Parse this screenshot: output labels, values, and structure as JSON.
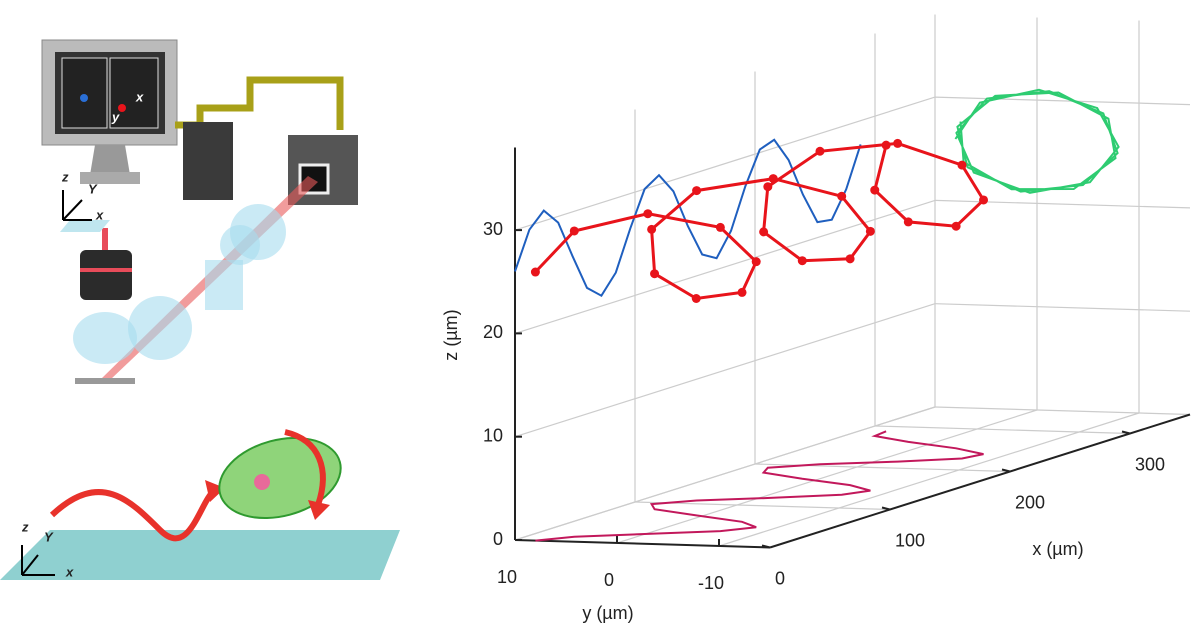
{
  "chart_data": {
    "type": "line3d",
    "xlabel": "x (µm)",
    "ylabel": "y (µm)",
    "zlabel": "z (µm)",
    "xlim": [
      0,
      350
    ],
    "ylim": [
      -15,
      10
    ],
    "zlim": [
      0,
      38
    ],
    "xticks": [
      0,
      100,
      200,
      300
    ],
    "yticks": [
      10,
      0,
      -10
    ],
    "zticks": [
      0,
      10,
      20,
      30
    ],
    "grid": true,
    "projection_colors": {
      "xz": "#1f5fbf",
      "yz": "#2ecc71",
      "xy": "#c2185b"
    },
    "series": [
      {
        "color": "#e8141b",
        "x": [
          0,
          12,
          24,
          36,
          48,
          60,
          72,
          84,
          96,
          108,
          120,
          132,
          144,
          156,
          168,
          180,
          192,
          204,
          216,
          228,
          240,
          252,
          264,
          276,
          288
        ],
        "y": [
          8.0,
          5.6,
          -0.2,
          -5.9,
          -8.0,
          -5.2,
          0.7,
          6.2,
          7.9,
          4.9,
          -1.2,
          -6.5,
          -7.9,
          -4.5,
          1.6,
          6.8,
          7.8,
          4.1,
          -2.1,
          -7.0,
          -7.7,
          -3.6,
          2.5,
          7.2,
          7.5
        ],
        "z": [
          26.0,
          29.6,
          31.0,
          29.4,
          25.7,
          22.2,
          21.0,
          22.8,
          26.6,
          30.0,
          30.9,
          28.9,
          25.1,
          21.9,
          21.1,
          23.3,
          27.2,
          30.3,
          30.8,
          28.4,
          24.6,
          21.5,
          21.3,
          23.8,
          27.7
        ]
      }
    ]
  },
  "schematic": {
    "labels": [
      "x",
      "y",
      "z",
      "Y",
      "x",
      "z",
      "Y",
      "x"
    ]
  }
}
